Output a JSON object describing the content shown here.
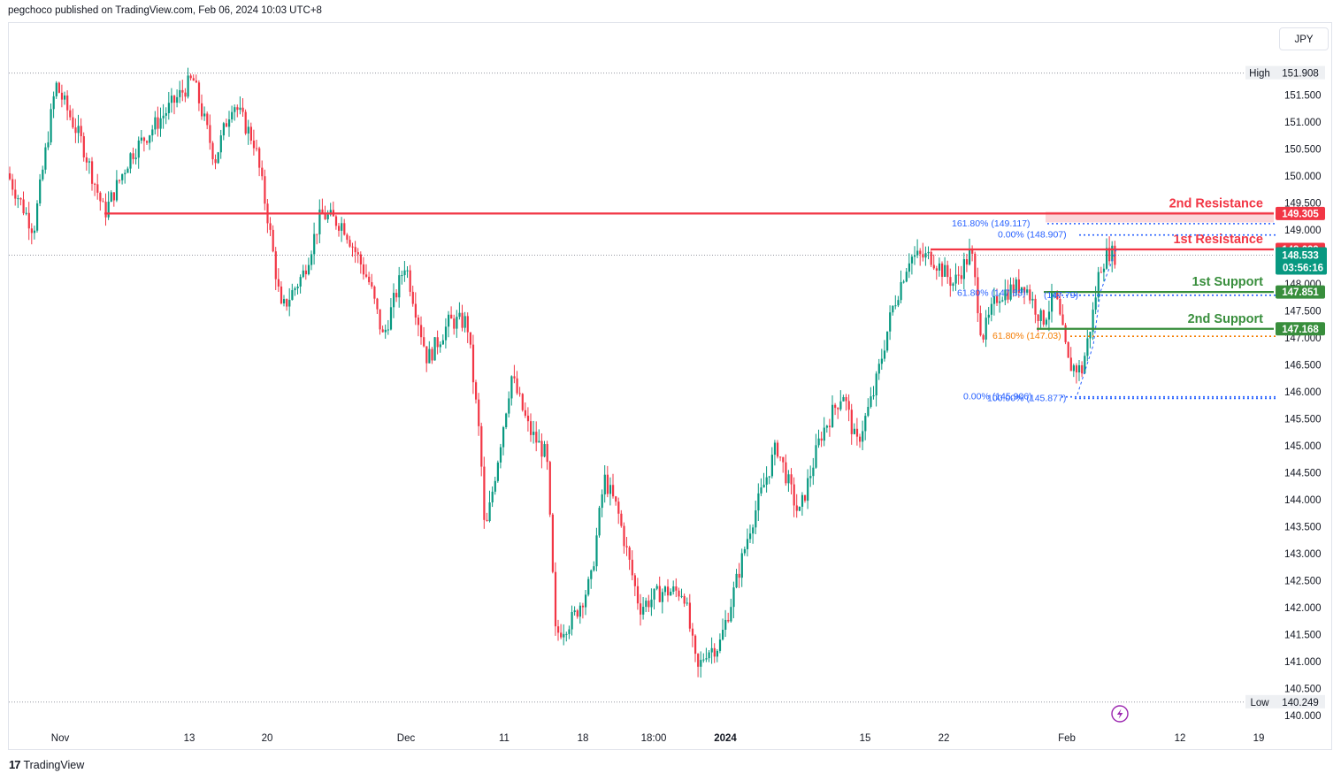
{
  "header": {
    "publisher_line": "pegchoco published on TradingView.com, Feb 06, 2024 10:03 UTC+8"
  },
  "toolbar": {
    "currency": "JPY"
  },
  "footer": {
    "brand": "TradingView",
    "logo_glyph": "17"
  },
  "colors": {
    "up": "#089981",
    "down": "#f23645",
    "resistance": "#f23645",
    "support": "#388e3c",
    "fib": "#2962ff",
    "fib_orange": "#f57c00",
    "price_tag": "#089981",
    "grid_dotted": "#9598a1"
  },
  "chart_data": {
    "type": "candlestick",
    "currency": "JPY",
    "y_axis": {
      "ticks": [
        "140.000",
        "140.500",
        "141.000",
        "141.500",
        "142.000",
        "142.500",
        "143.000",
        "143.500",
        "144.000",
        "144.500",
        "145.000",
        "145.500",
        "146.000",
        "146.500",
        "147.000",
        "147.500",
        "148.000",
        "148.500",
        "149.000",
        "149.500",
        "150.000",
        "150.500",
        "151.000",
        "151.500",
        "151.908"
      ],
      "range": [
        139.95,
        152.05
      ]
    },
    "x_axis": {
      "ticks": [
        {
          "label": "Nov",
          "bold": false
        },
        {
          "label": "13",
          "bold": false
        },
        {
          "label": "20",
          "bold": false
        },
        {
          "label": "Dec",
          "bold": false
        },
        {
          "label": "11",
          "bold": false
        },
        {
          "label": "18",
          "bold": false
        },
        {
          "label": "18:00",
          "bold": false
        },
        {
          "label": "2024",
          "bold": true
        },
        {
          "label": "15",
          "bold": false
        },
        {
          "label": "22",
          "bold": false
        },
        {
          "label": "Feb",
          "bold": false
        },
        {
          "label": "12",
          "bold": false
        },
        {
          "label": "19",
          "bold": false
        }
      ]
    },
    "price_path": [
      [
        0,
        150.4
      ],
      [
        40,
        149.0
      ],
      [
        65,
        151.7
      ],
      [
        95,
        150.6
      ],
      [
        120,
        149.3
      ],
      [
        150,
        150.4
      ],
      [
        180,
        151.0
      ],
      [
        220,
        151.8
      ],
      [
        245,
        150.3
      ],
      [
        265,
        151.4
      ],
      [
        290,
        150.6
      ],
      [
        305,
        149.2
      ],
      [
        320,
        147.5
      ],
      [
        345,
        148.2
      ],
      [
        365,
        149.3
      ],
      [
        390,
        149.1
      ],
      [
        420,
        148.0
      ],
      [
        435,
        147.0
      ],
      [
        460,
        148.4
      ],
      [
        485,
        146.6
      ],
      [
        510,
        147.3
      ],
      [
        530,
        147.3
      ],
      [
        545,
        145.0
      ],
      [
        550,
        143.3
      ],
      [
        565,
        144.8
      ],
      [
        580,
        146.3
      ],
      [
        600,
        145.3
      ],
      [
        620,
        144.8
      ],
      [
        630,
        141.5
      ],
      [
        650,
        141.8
      ],
      [
        670,
        142.5
      ],
      [
        685,
        144.4
      ],
      [
        700,
        143.8
      ],
      [
        725,
        142.0
      ],
      [
        750,
        142.3
      ],
      [
        775,
        142.3
      ],
      [
        790,
        140.8
      ],
      [
        800,
        141.2
      ],
      [
        815,
        141.3
      ],
      [
        830,
        142.2
      ],
      [
        850,
        143.5
      ],
      [
        880,
        145.0
      ],
      [
        905,
        143.7
      ],
      [
        930,
        145.2
      ],
      [
        955,
        146.0
      ],
      [
        970,
        145.0
      ],
      [
        990,
        146.0
      ],
      [
        1010,
        147.5
      ],
      [
        1030,
        148.5
      ],
      [
        1055,
        148.5
      ],
      [
        1080,
        148.0
      ],
      [
        1100,
        148.6
      ],
      [
        1112,
        147.0
      ],
      [
        1130,
        147.8
      ],
      [
        1160,
        148.0
      ],
      [
        1180,
        147.3
      ],
      [
        1195,
        147.8
      ],
      [
        1210,
        146.5
      ],
      [
        1225,
        146.4
      ],
      [
        1238,
        147.5
      ],
      [
        1245,
        148.3
      ],
      [
        1255,
        148.6
      ],
      [
        1265,
        148.5
      ]
    ],
    "levels": [
      {
        "name": "2nd Resistance",
        "value": 149.305,
        "tag": "149.305",
        "kind": "resistance"
      },
      {
        "name": "1st Resistance",
        "value": 148.639,
        "tag": "148.639",
        "kind": "resistance"
      },
      {
        "name": "1st Support",
        "value": 147.851,
        "tag": "147.851",
        "kind": "support"
      },
      {
        "name": "2nd Support",
        "value": 147.168,
        "tag": "147.168",
        "kind": "support"
      }
    ],
    "fib_labels": [
      {
        "text": "161.80% (149.117)",
        "value": 149.117,
        "color": "fib"
      },
      {
        "text": "0.00% (148.907)",
        "value": 148.907,
        "color": "fib"
      },
      {
        "text": "61.80% (147.03)",
        "value": 147.03,
        "color": "fib_orange"
      },
      {
        "text": "0.00% (145.906)",
        "value": 145.906,
        "color": "fib"
      },
      {
        "text": "100.00% (145.877)",
        "value": 145.877,
        "color": "fib"
      },
      {
        "text": "61.80% (147.83)",
        "value": 147.83,
        "color": "fib"
      },
      {
        "text": "(147.79)",
        "value": 147.79,
        "color": "fib"
      }
    ],
    "current_price": {
      "value": "148.533",
      "countdown": "03:56:16",
      "numeric": 148.533
    },
    "high": {
      "label": "High",
      "value": "151.908",
      "numeric": 151.908
    },
    "low": {
      "label": "Low",
      "value": "140.249",
      "numeric": 140.249
    }
  }
}
